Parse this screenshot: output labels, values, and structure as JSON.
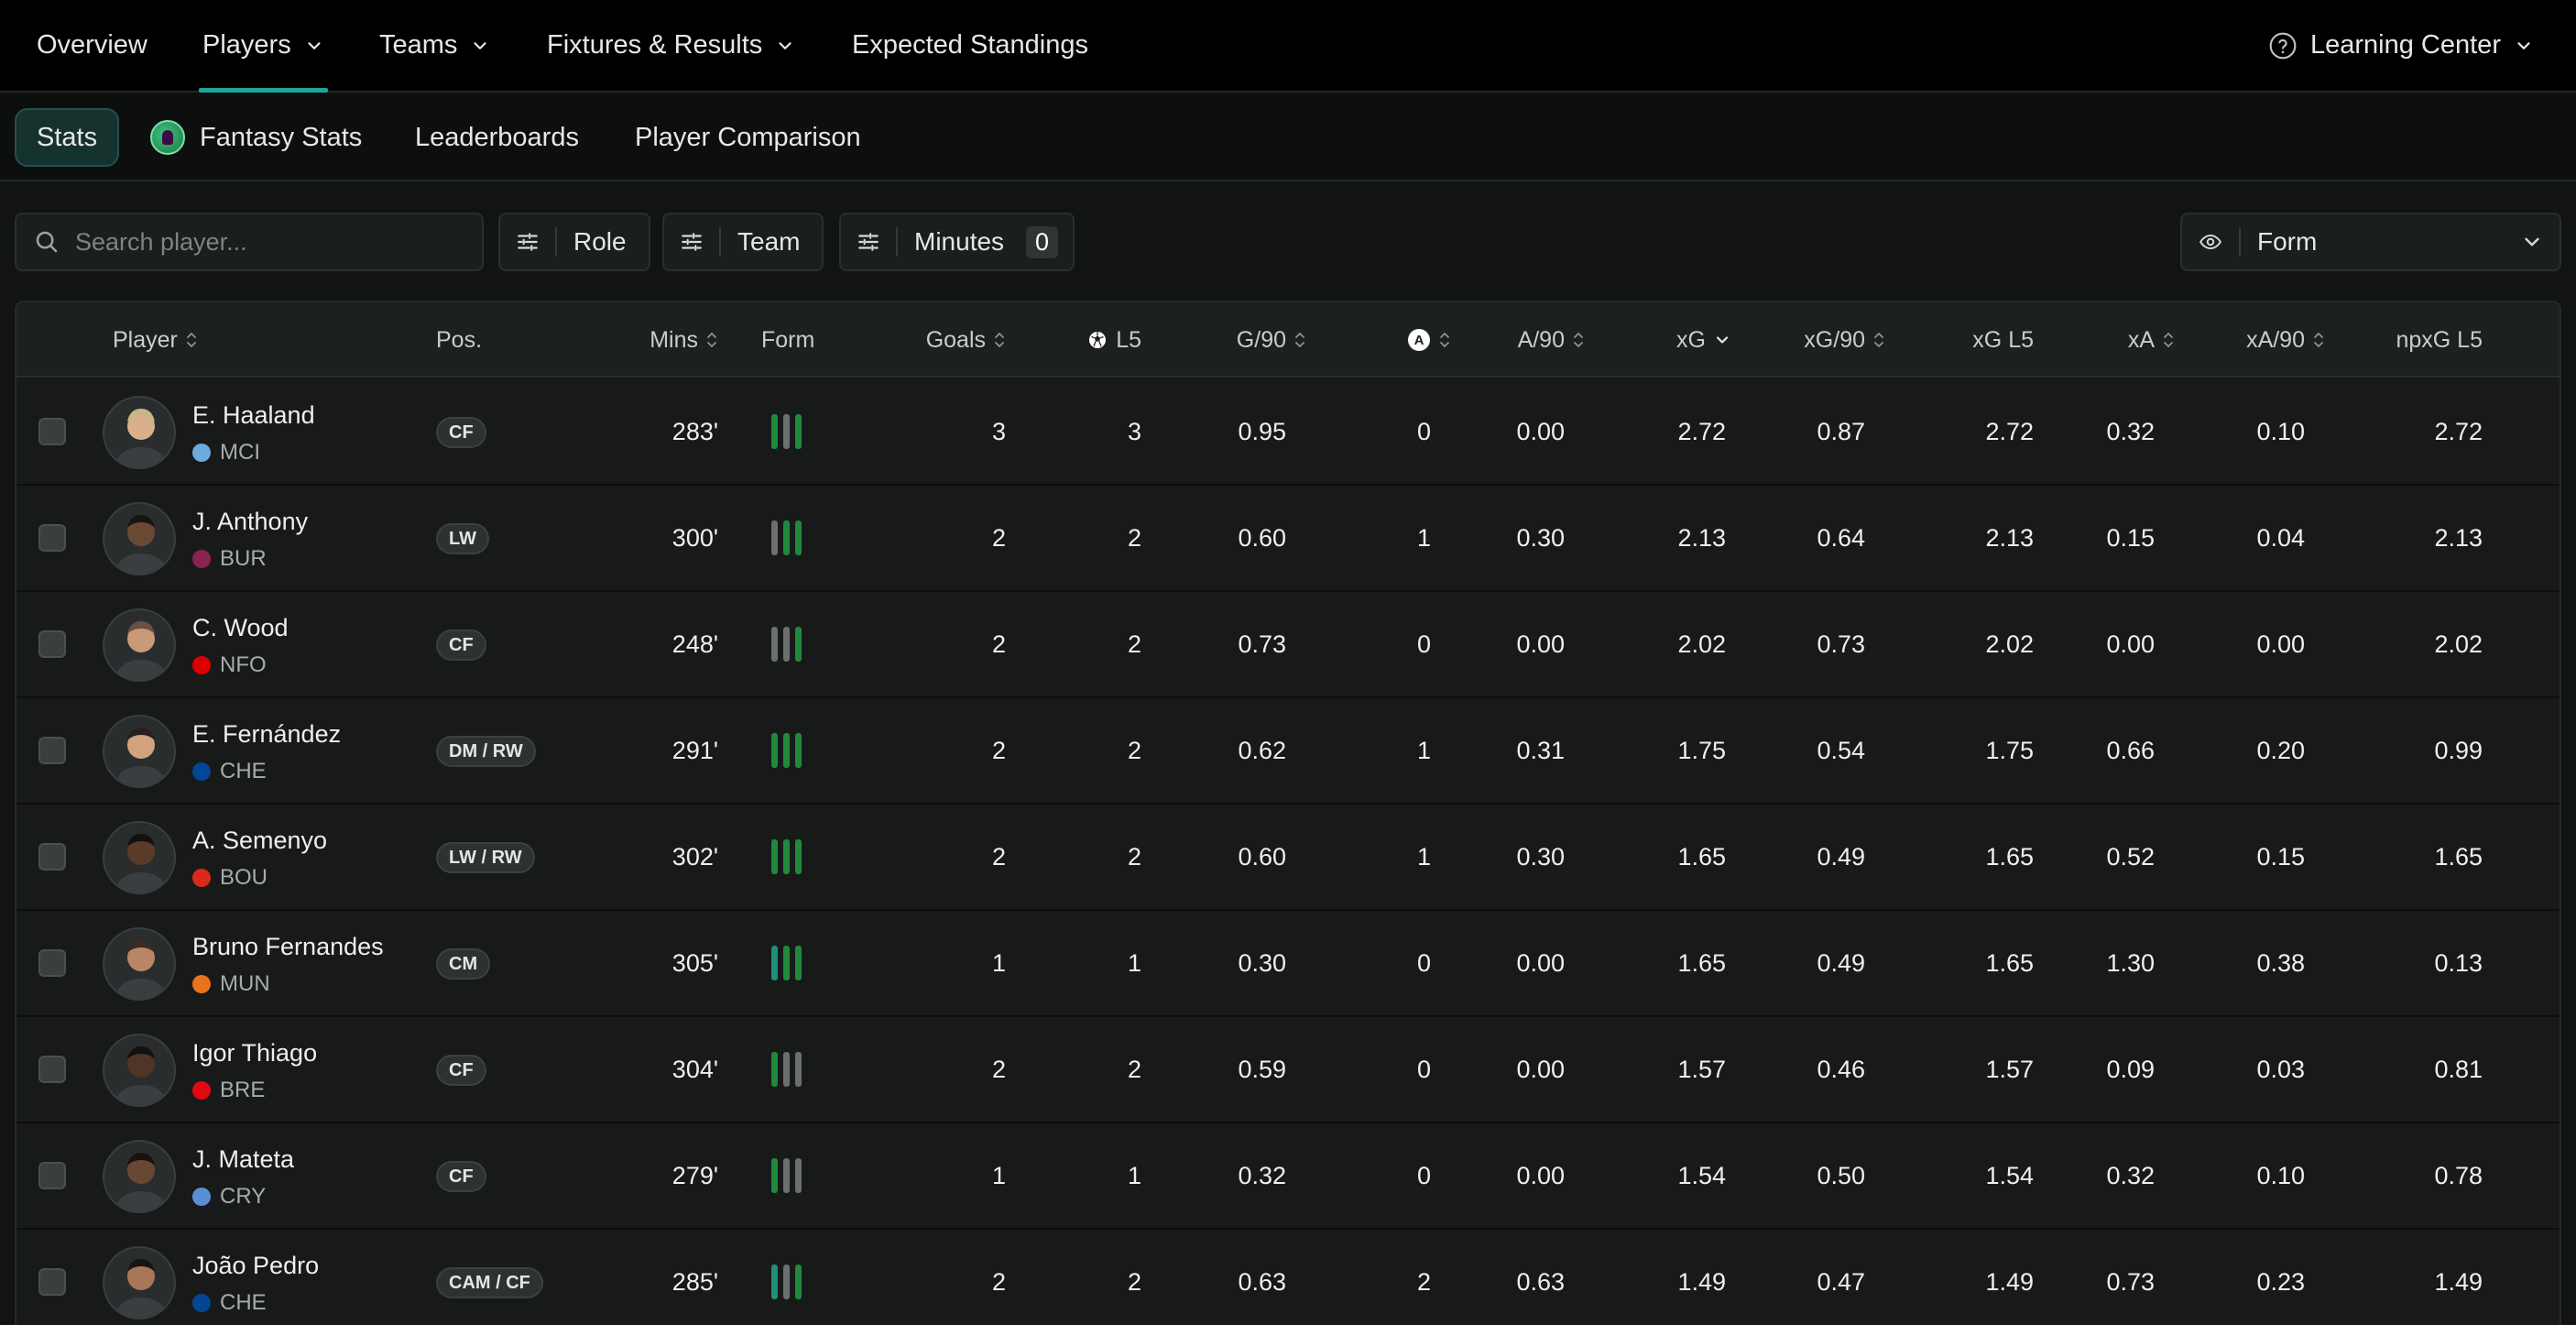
{
  "topnav": {
    "items": [
      {
        "label": "Overview"
      },
      {
        "label": "Players"
      },
      {
        "label": "Teams"
      },
      {
        "label": "Fixtures & Results"
      },
      {
        "label": "Expected Standings"
      }
    ],
    "learning": "Learning Center"
  },
  "subnav": {
    "items": [
      {
        "label": "Stats"
      },
      {
        "label": "Fantasy Stats"
      },
      {
        "label": "Leaderboards"
      },
      {
        "label": "Player Comparison"
      }
    ]
  },
  "filters": {
    "search_placeholder": "Search player...",
    "role": "Role",
    "team": "Team",
    "minutes": "Minutes",
    "minutes_count": "0",
    "view": "Form"
  },
  "table": {
    "headers": {
      "player": "Player",
      "pos": "Pos.",
      "mins": "Mins",
      "form": "Form",
      "goals": "Goals",
      "l5": "L5",
      "g90": "G/90",
      "a90": "A/90",
      "xg": "xG",
      "xg90": "xG/90",
      "xgl5": "xG L5",
      "xa": "xA",
      "xa90": "xA/90",
      "npxgl5": "npxG L5"
    },
    "rows": [
      {
        "name": "E. Haaland",
        "team": "MCI",
        "team_color": "#6cabdd",
        "pos": "CF",
        "mins": "283'",
        "form": [
          "#1f8a3c",
          "#6b6f6e",
          "#1f8a3c"
        ],
        "goals": "3",
        "l5": "3",
        "g90": "0.95",
        "assists": "0",
        "a90": "0.00",
        "xg": "2.72",
        "xg90": "0.87",
        "xgl5": "2.72",
        "xa": "0.32",
        "xa90": "0.10",
        "npxgl5": "2.72"
      },
      {
        "name": "J. Anthony",
        "team": "BUR",
        "team_color": "#8a2350",
        "pos": "LW",
        "mins": "300'",
        "form": [
          "#6b6f6e",
          "#1f8a3c",
          "#1f8a3c"
        ],
        "goals": "2",
        "l5": "2",
        "g90": "0.60",
        "assists": "1",
        "a90": "0.30",
        "xg": "2.13",
        "xg90": "0.64",
        "xgl5": "2.13",
        "xa": "0.15",
        "xa90": "0.04",
        "npxgl5": "2.13"
      },
      {
        "name": "C. Wood",
        "team": "NFO",
        "team_color": "#dd0000",
        "pos": "CF",
        "mins": "248'",
        "form": [
          "#6b6f6e",
          "#6b6f6e",
          "#1f8a3c"
        ],
        "goals": "2",
        "l5": "2",
        "g90": "0.73",
        "assists": "0",
        "a90": "0.00",
        "xg": "2.02",
        "xg90": "0.73",
        "xgl5": "2.02",
        "xa": "0.00",
        "xa90": "0.00",
        "npxgl5": "2.02"
      },
      {
        "name": "E. Fernández",
        "team": "CHE",
        "team_color": "#034694",
        "pos": "DM / RW",
        "mins": "291'",
        "form": [
          "#1f8a3c",
          "#1f8a3c",
          "#1f8a3c"
        ],
        "goals": "2",
        "l5": "2",
        "g90": "0.62",
        "assists": "1",
        "a90": "0.31",
        "xg": "1.75",
        "xg90": "0.54",
        "xgl5": "1.75",
        "xa": "0.66",
        "xa90": "0.20",
        "npxgl5": "0.99"
      },
      {
        "name": "A. Semenyo",
        "team": "BOU",
        "team_color": "#da291c",
        "pos": "LW / RW",
        "mins": "302'",
        "form": [
          "#1f8a3c",
          "#1f8a3c",
          "#1f8a3c"
        ],
        "goals": "2",
        "l5": "2",
        "g90": "0.60",
        "assists": "1",
        "a90": "0.30",
        "xg": "1.65",
        "xg90": "0.49",
        "xgl5": "1.65",
        "xa": "0.52",
        "xa90": "0.15",
        "npxgl5": "1.65"
      },
      {
        "name": "Bruno Fernandes",
        "team": "MUN",
        "team_color": "#e8731a",
        "pos": "CM",
        "mins": "305'",
        "form": [
          "#1e8f7a",
          "#1f8a3c",
          "#1f8a3c"
        ],
        "goals": "1",
        "l5": "1",
        "g90": "0.30",
        "assists": "0",
        "a90": "0.00",
        "xg": "1.65",
        "xg90": "0.49",
        "xgl5": "1.65",
        "xa": "1.30",
        "xa90": "0.38",
        "npxgl5": "0.13"
      },
      {
        "name": "Igor Thiago",
        "team": "BRE",
        "team_color": "#e30613",
        "pos": "CF",
        "mins": "304'",
        "form": [
          "#1f8a3c",
          "#6b6f6e",
          "#6b6f6e"
        ],
        "goals": "2",
        "l5": "2",
        "g90": "0.59",
        "assists": "0",
        "a90": "0.00",
        "xg": "1.57",
        "xg90": "0.46",
        "xgl5": "1.57",
        "xa": "0.09",
        "xa90": "0.03",
        "npxgl5": "0.81"
      },
      {
        "name": "J. Mateta",
        "team": "CRY",
        "team_color": "#5a8fd6",
        "pos": "CF",
        "mins": "279'",
        "form": [
          "#1f8a3c",
          "#6b6f6e",
          "#6b6f6e"
        ],
        "goals": "1",
        "l5": "1",
        "g90": "0.32",
        "assists": "0",
        "a90": "0.00",
        "xg": "1.54",
        "xg90": "0.50",
        "xgl5": "1.54",
        "xa": "0.32",
        "xa90": "0.10",
        "npxgl5": "0.78"
      },
      {
        "name": "João Pedro",
        "team": "CHE",
        "team_color": "#034694",
        "pos": "CAM / CF",
        "mins": "285'",
        "form": [
          "#1e8f7a",
          "#6b6f6e",
          "#1f8a3c"
        ],
        "goals": "2",
        "l5": "2",
        "g90": "0.63",
        "assists": "2",
        "a90": "0.63",
        "xg": "1.49",
        "xg90": "0.47",
        "xgl5": "1.49",
        "xa": "0.73",
        "xa90": "0.23",
        "npxgl5": "1.49"
      }
    ]
  }
}
